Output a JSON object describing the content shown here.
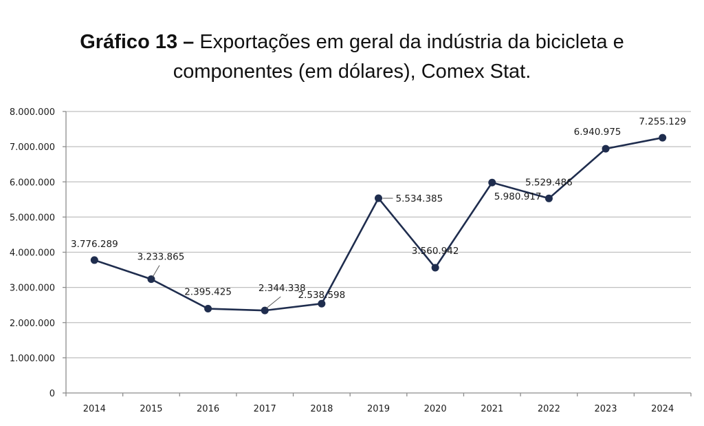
{
  "title": {
    "bold": "Gráfico 13 –",
    "rest_line1": " Exportações em geral da indústria da bicicleta e",
    "line2": "componentes (em dólares), Comex Stat."
  },
  "chart_data": {
    "type": "line",
    "title": "Gráfico 13 – Exportações em geral da indústria da bicicleta e componentes (em dólares), Comex Stat.",
    "xlabel": "",
    "ylabel": "",
    "categories": [
      "2014",
      "2015",
      "2016",
      "2017",
      "2018",
      "2019",
      "2020",
      "2021",
      "2022",
      "2023",
      "2024"
    ],
    "series": [
      {
        "values": [
          3776289,
          3233865,
          2395425,
          2344338,
          2538598,
          5534385,
          3560942,
          5980917,
          5529486,
          6940975,
          7255129
        ],
        "data_labels": [
          "3.776.289",
          "3.233.865",
          "2.395.425",
          "2.344.338",
          "2.538.598",
          "5.534.385",
          "3.560.942",
          "5.980.917",
          "5.529.486",
          "6.940.975",
          "7.255.129"
        ]
      }
    ],
    "ylim": [
      0,
      8000000
    ],
    "yticks": [
      0,
      1000000,
      2000000,
      3000000,
      4000000,
      5000000,
      6000000,
      7000000,
      8000000
    ],
    "ytick_labels": [
      "0",
      "1.000.000",
      "2.000.000",
      "3.000.000",
      "4.000.000",
      "5.000.000",
      "6.000.000",
      "7.000.000",
      "8.000.000"
    ],
    "grid": true,
    "legend": "none",
    "colors": {
      "line": "#1f2d4e",
      "marker": "#1f2d4e",
      "grid": "#bfbfbf",
      "axis": "#8c8c8c"
    }
  }
}
